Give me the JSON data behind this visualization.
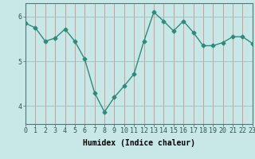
{
  "x": [
    0,
    1,
    2,
    3,
    4,
    5,
    6,
    7,
    8,
    9,
    10,
    11,
    12,
    13,
    14,
    15,
    16,
    17,
    18,
    19,
    20,
    21,
    22,
    23
  ],
  "y": [
    5.85,
    5.75,
    5.45,
    5.52,
    5.72,
    5.45,
    5.05,
    4.3,
    3.87,
    4.2,
    4.45,
    4.72,
    5.45,
    6.1,
    5.9,
    5.68,
    5.9,
    5.65,
    5.35,
    5.35,
    5.42,
    5.55,
    5.55,
    5.4
  ],
  "line_color": "#2e8b7a",
  "marker": "D",
  "marker_size": 2.5,
  "line_width": 1.0,
  "bg_color": "#c8e8e8",
  "grid_color_v": "#d09090",
  "grid_color_h": "#a0c0c0",
  "xlabel": "Humidex (Indice chaleur)",
  "xlabel_fontsize": 7,
  "tick_fontsize": 6,
  "xlim": [
    0,
    23
  ],
  "ylim": [
    3.6,
    6.3
  ],
  "yticks": [
    4,
    5,
    6
  ],
  "xticks": [
    0,
    1,
    2,
    3,
    4,
    5,
    6,
    7,
    8,
    9,
    10,
    11,
    12,
    13,
    14,
    15,
    16,
    17,
    18,
    19,
    20,
    21,
    22,
    23
  ]
}
